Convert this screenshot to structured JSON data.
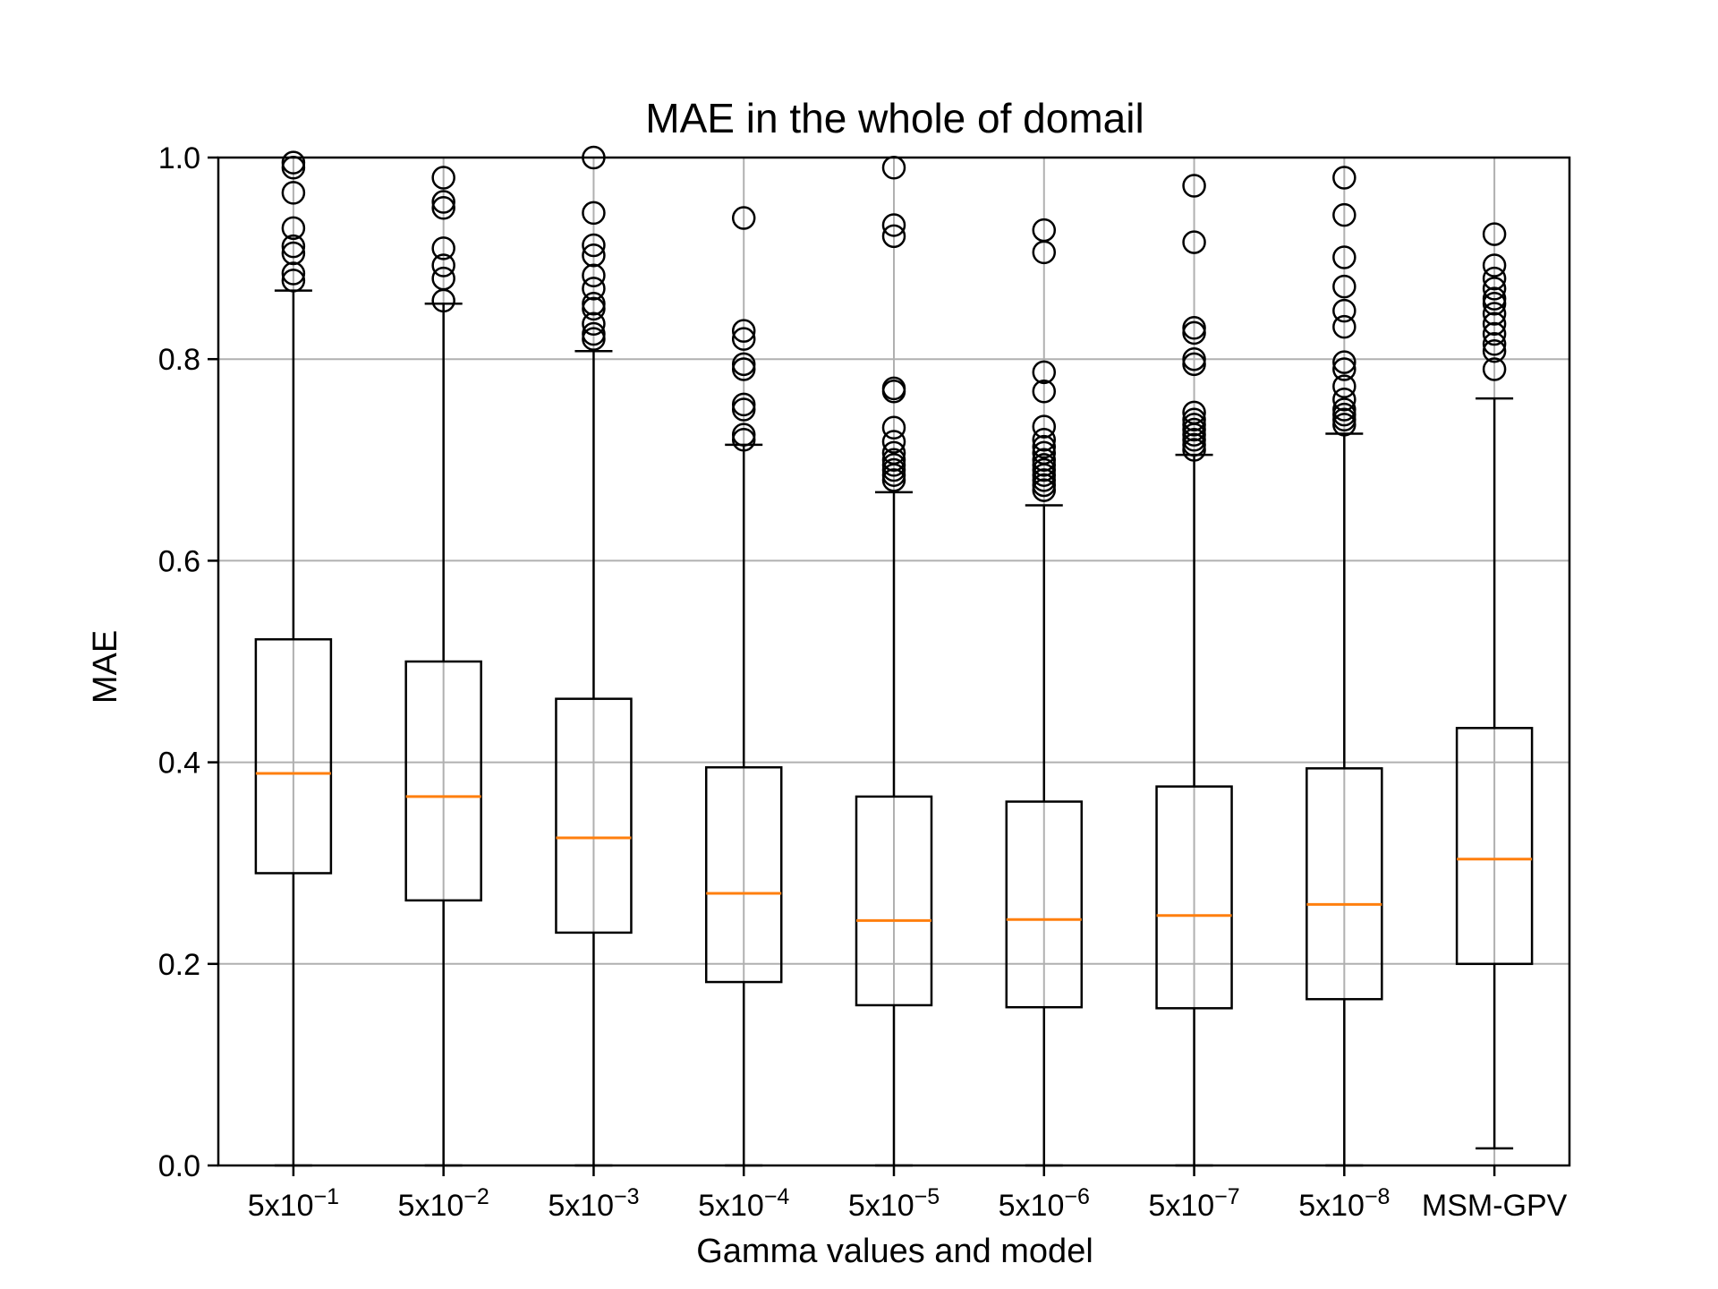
{
  "chart_data": {
    "type": "box",
    "title": "MAE in the whole of domail",
    "xlabel": "Gamma values and model",
    "ylabel": "MAE",
    "ylim": [
      0.0,
      1.0
    ],
    "yticks": [
      "0.0",
      "0.2",
      "0.4",
      "0.6",
      "0.8",
      "1.0"
    ],
    "grid": true,
    "colors": {
      "box": "#000000",
      "median": "#ff7f0e",
      "grid": "#b0b0b0"
    },
    "categories": [
      {
        "base": "5x10",
        "exp": "−1"
      },
      {
        "base": "5x10",
        "exp": "−2"
      },
      {
        "base": "5x10",
        "exp": "−3"
      },
      {
        "base": "5x10",
        "exp": "−4"
      },
      {
        "base": "5x10",
        "exp": "−5"
      },
      {
        "base": "5x10",
        "exp": "−6"
      },
      {
        "base": "5x10",
        "exp": "−7"
      },
      {
        "base": "5x10",
        "exp": "−8"
      },
      {
        "base": "MSM-GPV",
        "exp": ""
      }
    ],
    "boxes": [
      {
        "whislo": 0.0,
        "q1": 0.29,
        "med": 0.389,
        "q3": 0.522,
        "whishi": 0.868,
        "fliers": [
          0.995,
          0.99,
          0.965,
          0.93,
          0.912,
          0.905,
          0.885,
          0.878
        ]
      },
      {
        "whislo": 0.0,
        "q1": 0.263,
        "med": 0.366,
        "q3": 0.5,
        "whishi": 0.855,
        "fliers": [
          0.98,
          0.956,
          0.95,
          0.91,
          0.893,
          0.88,
          0.858
        ]
      },
      {
        "whislo": 0.0,
        "q1": 0.231,
        "med": 0.325,
        "q3": 0.463,
        "whishi": 0.808,
        "fliers": [
          1.0,
          0.945,
          0.913,
          0.903,
          0.883,
          0.87,
          0.855,
          0.85,
          0.835,
          0.825,
          0.82
        ]
      },
      {
        "whislo": 0.0,
        "q1": 0.182,
        "med": 0.27,
        "q3": 0.395,
        "whishi": 0.715,
        "fliers": [
          0.94,
          0.828,
          0.82,
          0.795,
          0.79,
          0.755,
          0.75,
          0.725,
          0.72
        ]
      },
      {
        "whislo": 0.0,
        "q1": 0.159,
        "med": 0.243,
        "q3": 0.366,
        "whishi": 0.668,
        "fliers": [
          0.99,
          0.933,
          0.922,
          0.771,
          0.768,
          0.732,
          0.718,
          0.707,
          0.7,
          0.695,
          0.69,
          0.685,
          0.68
        ]
      },
      {
        "whislo": 0.0,
        "q1": 0.157,
        "med": 0.244,
        "q3": 0.361,
        "whishi": 0.655,
        "fliers": [
          0.928,
          0.906,
          0.787,
          0.768,
          0.733,
          0.72,
          0.713,
          0.707,
          0.7,
          0.695,
          0.69,
          0.685,
          0.68,
          0.675,
          0.67
        ]
      },
      {
        "whislo": 0.0,
        "q1": 0.156,
        "med": 0.248,
        "q3": 0.376,
        "whishi": 0.705,
        "fliers": [
          0.972,
          0.916,
          0.831,
          0.826,
          0.8,
          0.795,
          0.747,
          0.74,
          0.735,
          0.73,
          0.725,
          0.72,
          0.715,
          0.71
        ]
      },
      {
        "whislo": 0.0,
        "q1": 0.165,
        "med": 0.259,
        "q3": 0.394,
        "whishi": 0.726,
        "fliers": [
          0.98,
          0.943,
          0.901,
          0.872,
          0.848,
          0.832,
          0.797,
          0.79,
          0.773,
          0.76,
          0.75,
          0.745,
          0.74,
          0.735
        ]
      },
      {
        "whislo": 0.017,
        "q1": 0.2,
        "med": 0.304,
        "q3": 0.434,
        "whishi": 0.761,
        "fliers": [
          0.924,
          0.893,
          0.88,
          0.87,
          0.86,
          0.855,
          0.845,
          0.835,
          0.825,
          0.815,
          0.808,
          0.79
        ]
      }
    ]
  }
}
